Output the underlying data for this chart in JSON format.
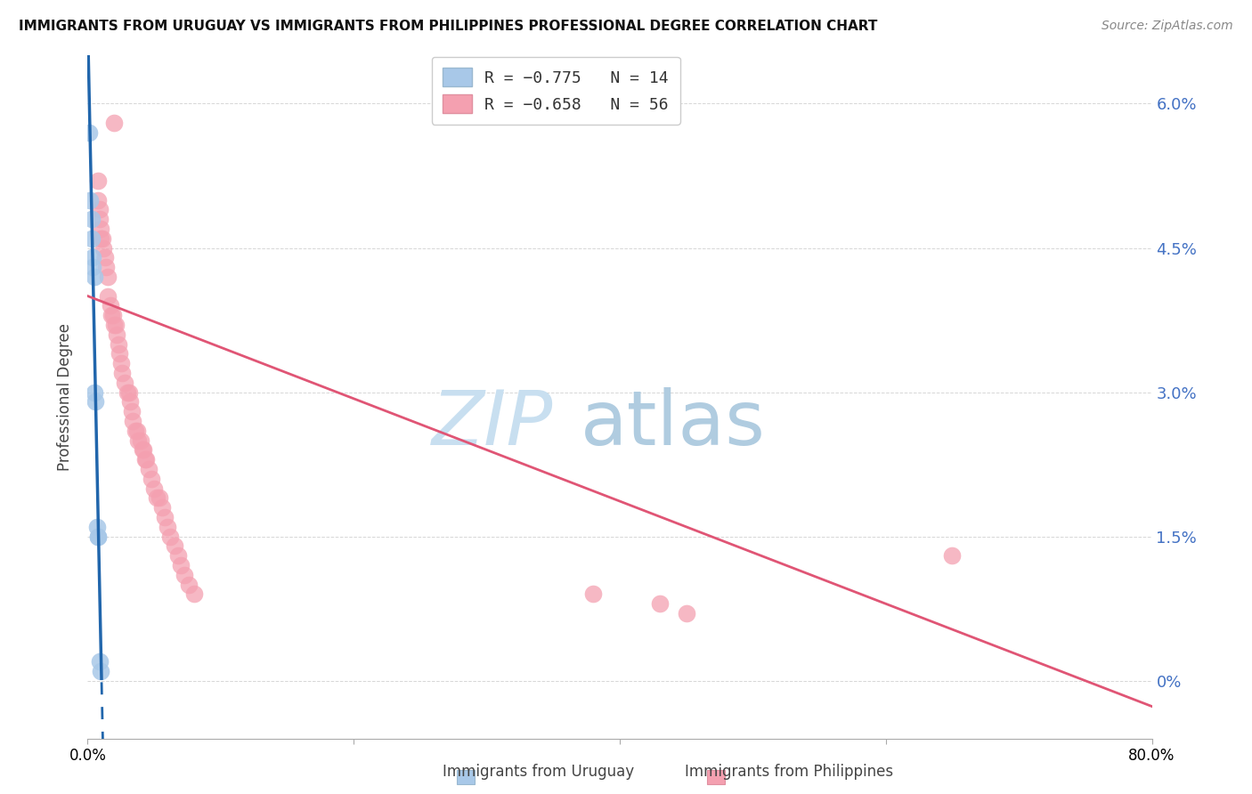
{
  "title": "IMMIGRANTS FROM URUGUAY VS IMMIGRANTS FROM PHILIPPINES PROFESSIONAL DEGREE CORRELATION CHART",
  "source": "Source: ZipAtlas.com",
  "ylabel": "Professional Degree",
  "color_uruguay": "#a8c8e8",
  "color_philippines": "#f4a0b0",
  "color_line_uruguay": "#2166ac",
  "color_line_philippines": "#e05575",
  "watermark_zip_color": "#c8dff0",
  "watermark_atlas_color": "#b0cce0",
  "background_color": "#ffffff",
  "grid_color": "#cccccc",
  "legend_label1": "R = −0.775   N = 14",
  "legend_label2": "R = −0.658   N = 56",
  "bottom_label1": "Immigrants from Uruguay",
  "bottom_label2": "Immigrants from Philippines",
  "xlim": [
    0.0,
    0.8
  ],
  "ylim": [
    -0.006,
    0.065
  ],
  "yticks": [
    0.0,
    0.015,
    0.03,
    0.045,
    0.06
  ],
  "ytick_labels_right": [
    "0%",
    "1.5%",
    "3.0%",
    "4.5%",
    "6.0%"
  ],
  "xticks": [
    0.0,
    0.2,
    0.4,
    0.6,
    0.8
  ],
  "xtick_labels": [
    "0.0%",
    "",
    "",
    "",
    "80.0%"
  ],
  "uruguay_x": [
    0.001,
    0.002,
    0.003,
    0.003,
    0.004,
    0.004,
    0.005,
    0.005,
    0.006,
    0.007,
    0.008,
    0.008,
    0.009,
    0.01
  ],
  "uruguay_y": [
    0.057,
    0.05,
    0.048,
    0.046,
    0.044,
    0.043,
    0.042,
    0.03,
    0.029,
    0.016,
    0.015,
    0.015,
    0.002,
    0.001
  ],
  "philippines_x": [
    0.02,
    0.008,
    0.008,
    0.009,
    0.009,
    0.01,
    0.01,
    0.011,
    0.012,
    0.013,
    0.014,
    0.015,
    0.015,
    0.017,
    0.018,
    0.019,
    0.02,
    0.021,
    0.022,
    0.023,
    0.024,
    0.025,
    0.026,
    0.028,
    0.03,
    0.031,
    0.032,
    0.033,
    0.034,
    0.036,
    0.037,
    0.038,
    0.04,
    0.041,
    0.042,
    0.043,
    0.044,
    0.046,
    0.048,
    0.05,
    0.052,
    0.054,
    0.056,
    0.058,
    0.06,
    0.062,
    0.065,
    0.068,
    0.07,
    0.073,
    0.076,
    0.08,
    0.65,
    0.38,
    0.43,
    0.45
  ],
  "philippines_y": [
    0.058,
    0.052,
    0.05,
    0.049,
    0.048,
    0.047,
    0.046,
    0.046,
    0.045,
    0.044,
    0.043,
    0.042,
    0.04,
    0.039,
    0.038,
    0.038,
    0.037,
    0.037,
    0.036,
    0.035,
    0.034,
    0.033,
    0.032,
    0.031,
    0.03,
    0.03,
    0.029,
    0.028,
    0.027,
    0.026,
    0.026,
    0.025,
    0.025,
    0.024,
    0.024,
    0.023,
    0.023,
    0.022,
    0.021,
    0.02,
    0.019,
    0.019,
    0.018,
    0.017,
    0.016,
    0.015,
    0.014,
    0.013,
    0.012,
    0.011,
    0.01,
    0.009,
    0.013,
    0.009,
    0.008,
    0.007
  ]
}
